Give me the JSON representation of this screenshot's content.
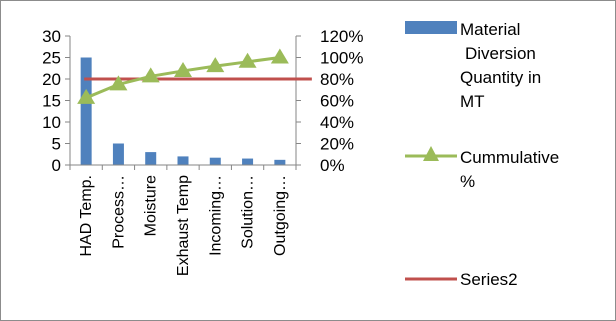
{
  "chart_data": {
    "type": "bar",
    "categories": [
      "HAD Temp.",
      "Process…",
      "Moisture",
      "Exhaust Temp",
      "Incoming…",
      "Solution…",
      "Outgoing…"
    ],
    "series": [
      {
        "name": "Material Diversion Quantity in MT",
        "type": "bar",
        "axis": "left",
        "color": "#4f81bd",
        "values": [
          25,
          5,
          3,
          2,
          1.7,
          1.5,
          1.2
        ]
      },
      {
        "name": "Cummulative %",
        "type": "line",
        "axis": "right",
        "marker": "triangle",
        "color": "#9bbb59",
        "values": [
          0.625,
          0.75,
          0.825,
          0.875,
          0.92,
          0.96,
          1.0
        ]
      },
      {
        "name": "Series2",
        "type": "line",
        "axis": "right",
        "color": "#c0504d",
        "values": [
          0.8,
          0.8,
          0.8,
          0.8,
          0.8,
          0.8,
          0.8
        ]
      }
    ],
    "y_left": {
      "ylim": [
        0,
        30
      ],
      "ticks": [
        "0",
        "5",
        "10",
        "15",
        "20",
        "25",
        "30"
      ]
    },
    "y_right": {
      "ylim": [
        0,
        1.2
      ],
      "ticks": [
        "0%",
        "20%",
        "40%",
        "60%",
        "80%",
        "100%",
        "120%"
      ]
    },
    "title": "",
    "xlabel": "",
    "ylabel": "",
    "grid": false,
    "legend_position": "right"
  },
  "legend": [
    {
      "lines": [
        "Material",
        "Diversion",
        "Quantity in",
        "MT"
      ]
    },
    {
      "lines": [
        "Cummulative",
        "%"
      ]
    },
    {
      "lines": [
        "Series2"
      ]
    }
  ]
}
